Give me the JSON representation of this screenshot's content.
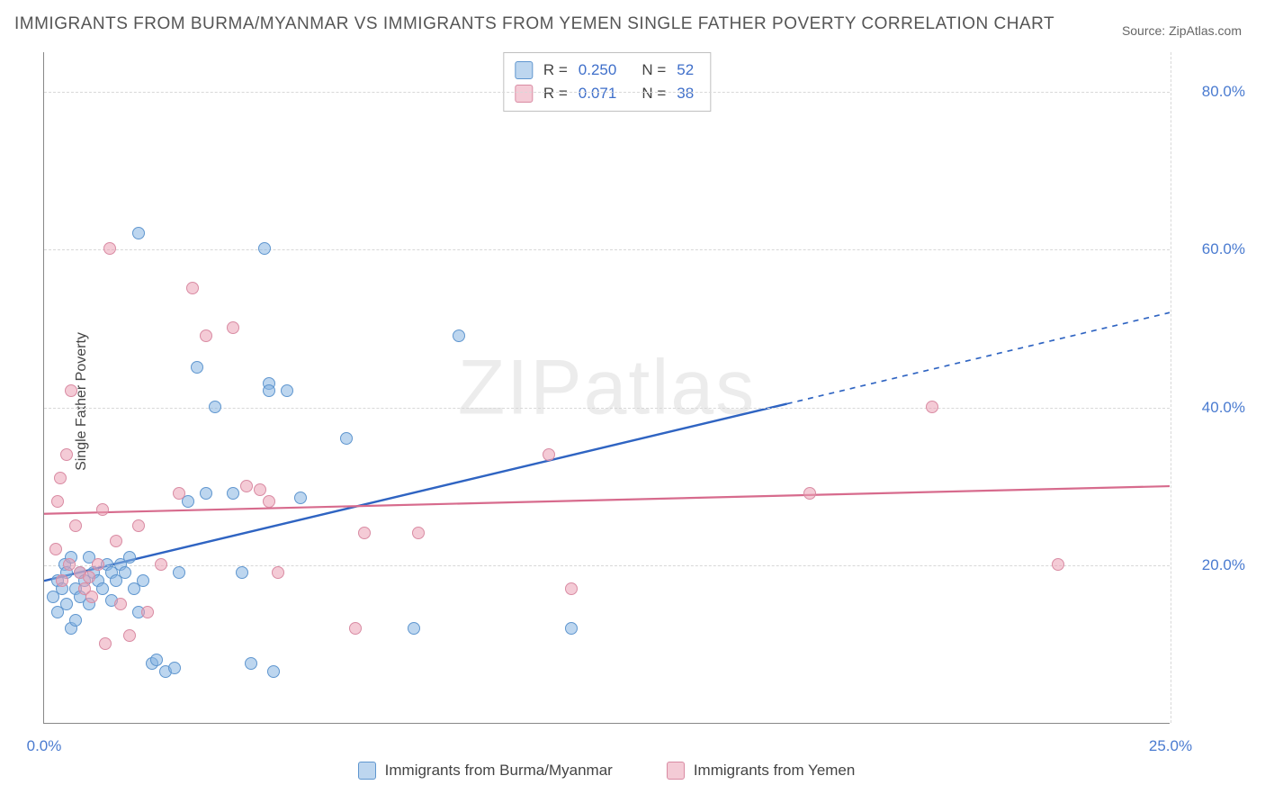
{
  "title": "IMMIGRANTS FROM BURMA/MYANMAR VS IMMIGRANTS FROM YEMEN SINGLE FATHER POVERTY CORRELATION CHART",
  "source": "Source: ZipAtlas.com",
  "ylabel": "Single Father Poverty",
  "watermark": "ZIPatlas",
  "chart": {
    "type": "scatter-with-regression",
    "background_color": "#ffffff",
    "grid_color": "#d8d8d8",
    "axis_color": "#888888",
    "tick_color": "#4a7bd0",
    "tick_fontsize": 17,
    "title_color": "#555555",
    "title_fontsize": 19,
    "ylabel_fontsize": 16,
    "marker_radius": 7,
    "xlim": [
      0,
      25
    ],
    "ylim": [
      0,
      85
    ],
    "yticks": [
      20,
      40,
      60,
      80
    ],
    "ytick_labels": [
      "20.0%",
      "40.0%",
      "60.0%",
      "80.0%"
    ],
    "xticks": [
      0,
      25
    ],
    "xtick_labels": [
      "0.0%",
      "25.0%"
    ],
    "series": [
      {
        "name": "Immigrants from Burma/Myanmar",
        "key": "s0",
        "marker_fill": "rgba(135,180,225,0.55)",
        "marker_stroke": "#5f96cf",
        "line_color": "#2f64c2",
        "line_width": 2.4,
        "R": "0.250",
        "N": "52",
        "regression": {
          "x1": 0,
          "y1": 18,
          "x2": 25,
          "y2": 52,
          "solid_until_x": 16.5
        },
        "points": [
          [
            0.2,
            16
          ],
          [
            0.3,
            18
          ],
          [
            0.3,
            14
          ],
          [
            0.4,
            17
          ],
          [
            0.45,
            20
          ],
          [
            0.5,
            19
          ],
          [
            0.5,
            15
          ],
          [
            0.6,
            21
          ],
          [
            0.6,
            12
          ],
          [
            0.7,
            17
          ],
          [
            0.7,
            13
          ],
          [
            0.8,
            16
          ],
          [
            0.8,
            19
          ],
          [
            0.9,
            18
          ],
          [
            1.0,
            21
          ],
          [
            1.0,
            15
          ],
          [
            1.1,
            19
          ],
          [
            1.2,
            18
          ],
          [
            1.3,
            17
          ],
          [
            1.4,
            20
          ],
          [
            1.5,
            19
          ],
          [
            1.5,
            15.5
          ],
          [
            1.6,
            18
          ],
          [
            1.7,
            20
          ],
          [
            1.8,
            19
          ],
          [
            1.9,
            21
          ],
          [
            2.0,
            17
          ],
          [
            2.1,
            14
          ],
          [
            2.2,
            18
          ],
          [
            2.4,
            7.5
          ],
          [
            2.5,
            8
          ],
          [
            2.7,
            6.5
          ],
          [
            2.9,
            7
          ],
          [
            3.0,
            19
          ],
          [
            3.2,
            28
          ],
          [
            3.4,
            45
          ],
          [
            3.6,
            29
          ],
          [
            3.8,
            40
          ],
          [
            2.1,
            62
          ],
          [
            4.9,
            60
          ],
          [
            5.0,
            43
          ],
          [
            5.0,
            42
          ],
          [
            4.2,
            29
          ],
          [
            4.4,
            19
          ],
          [
            4.6,
            7.5
          ],
          [
            5.1,
            6.5
          ],
          [
            5.4,
            42
          ],
          [
            5.7,
            28.5
          ],
          [
            6.7,
            36
          ],
          [
            8.2,
            12
          ],
          [
            9.2,
            49
          ],
          [
            11.7,
            12
          ]
        ]
      },
      {
        "name": "Immigrants from Yemen",
        "key": "s1",
        "marker_fill": "rgba(235,160,180,0.55)",
        "marker_stroke": "#d98ba3",
        "line_color": "#d76b8d",
        "line_width": 2.2,
        "R": "0.071",
        "N": "38",
        "regression": {
          "x1": 0,
          "y1": 26.5,
          "x2": 25,
          "y2": 30
        },
        "points": [
          [
            0.25,
            22
          ],
          [
            0.3,
            28
          ],
          [
            0.35,
            31
          ],
          [
            0.4,
            18
          ],
          [
            0.5,
            34
          ],
          [
            0.55,
            20
          ],
          [
            0.6,
            42
          ],
          [
            0.7,
            25
          ],
          [
            0.8,
            19
          ],
          [
            0.9,
            17
          ],
          [
            1.0,
            18.5
          ],
          [
            1.05,
            16
          ],
          [
            1.2,
            20
          ],
          [
            1.3,
            27
          ],
          [
            1.35,
            10
          ],
          [
            1.45,
            60
          ],
          [
            1.6,
            23
          ],
          [
            1.7,
            15
          ],
          [
            1.9,
            11
          ],
          [
            2.1,
            25
          ],
          [
            2.3,
            14
          ],
          [
            2.6,
            20
          ],
          [
            3.0,
            29
          ],
          [
            3.3,
            55
          ],
          [
            3.6,
            49
          ],
          [
            4.2,
            50
          ],
          [
            4.5,
            30
          ],
          [
            5.0,
            28
          ],
          [
            5.2,
            19
          ],
          [
            6.9,
            12
          ],
          [
            7.1,
            24
          ],
          [
            8.3,
            24
          ],
          [
            11.2,
            34
          ],
          [
            11.7,
            17
          ],
          [
            17.0,
            29
          ],
          [
            19.7,
            40
          ],
          [
            22.5,
            20
          ],
          [
            4.8,
            29.5
          ]
        ]
      }
    ]
  },
  "stats_labels": {
    "R": "R =",
    "N": "N ="
  },
  "legend": [
    {
      "series": 0,
      "label": "Immigrants from Burma/Myanmar"
    },
    {
      "series": 1,
      "label": "Immigrants from Yemen"
    }
  ]
}
